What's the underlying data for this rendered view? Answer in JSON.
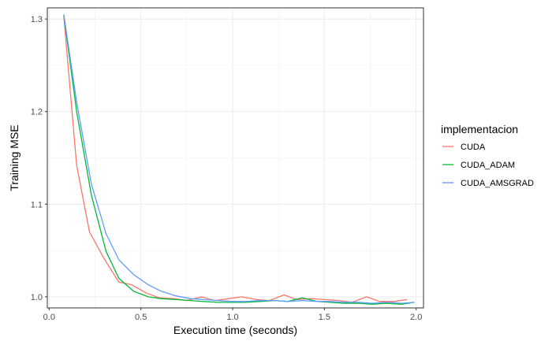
{
  "chart_data": {
    "type": "line",
    "xlabel": "Execution time (seconds)",
    "ylabel": "Training MSE",
    "xlim": [
      -0.01,
      2.04
    ],
    "ylim": [
      0.988,
      1.312
    ],
    "x_ticks": [
      0.0,
      0.5,
      1.0,
      1.5,
      2.0
    ],
    "x_tick_labels": [
      "0.0",
      "0.5",
      "1.0",
      "1.5",
      "2.0"
    ],
    "y_ticks": [
      1.0,
      1.1,
      1.2,
      1.3
    ],
    "y_tick_labels": [
      "1.0",
      "1.1",
      "1.2",
      "1.3"
    ],
    "grid": true,
    "legend": {
      "title": "implementacion",
      "placement": "right"
    },
    "series": [
      {
        "name": "CUDA",
        "color": "#F8766D",
        "x": [
          0.08,
          0.15,
          0.22,
          0.3,
          0.38,
          0.45,
          0.53,
          0.6,
          0.68,
          0.75,
          0.83,
          0.9,
          0.98,
          1.05,
          1.13,
          1.2,
          1.28,
          1.35,
          1.43,
          1.5,
          1.58,
          1.65,
          1.73,
          1.8,
          1.88,
          1.95
        ],
        "y": [
          1.303,
          1.142,
          1.07,
          1.041,
          1.016,
          1.013,
          1.004,
          0.999,
          0.998,
          0.996,
          1.0,
          0.996,
          0.998,
          1.0,
          0.997,
          0.996,
          1.002,
          0.997,
          0.998,
          0.997,
          0.996,
          0.994,
          1.0,
          0.995,
          0.995,
          0.997
        ]
      },
      {
        "name": "CUDA_ADAM",
        "color": "#00BA38",
        "x": [
          0.08,
          0.15,
          0.23,
          0.31,
          0.38,
          0.46,
          0.54,
          0.61,
          0.69,
          0.77,
          0.84,
          0.92,
          1.0,
          1.07,
          1.15,
          1.23,
          1.3,
          1.38,
          1.46,
          1.53,
          1.61,
          1.69,
          1.76,
          1.84,
          1.92,
          1.99
        ],
        "y": [
          1.304,
          1.2,
          1.11,
          1.049,
          1.02,
          1.006,
          1.0,
          0.998,
          0.997,
          0.996,
          0.995,
          0.994,
          0.994,
          0.994,
          0.995,
          0.996,
          0.995,
          0.999,
          0.995,
          0.994,
          0.993,
          0.993,
          0.992,
          0.993,
          0.992,
          0.994
        ]
      },
      {
        "name": "CUDA_AMSGRAD",
        "color": "#619CFF",
        "x": [
          0.08,
          0.15,
          0.23,
          0.31,
          0.38,
          0.46,
          0.54,
          0.61,
          0.69,
          0.77,
          0.84,
          0.92,
          1.0,
          1.07,
          1.15,
          1.23,
          1.3,
          1.38,
          1.46,
          1.53,
          1.61,
          1.69,
          1.76,
          1.84,
          1.92,
          1.99
        ],
        "y": [
          1.305,
          1.21,
          1.122,
          1.068,
          1.04,
          1.024,
          1.013,
          1.006,
          1.001,
          0.998,
          0.997,
          0.996,
          0.995,
          0.995,
          0.996,
          0.996,
          0.995,
          0.996,
          0.995,
          0.995,
          0.994,
          0.994,
          0.993,
          0.994,
          0.993,
          0.994
        ]
      }
    ]
  }
}
